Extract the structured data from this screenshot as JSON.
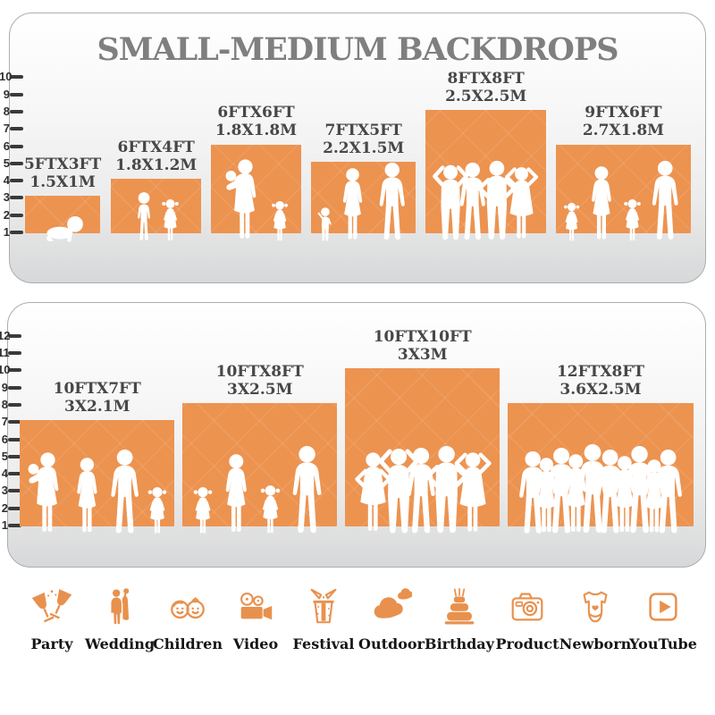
{
  "title": "SMALL-MEDIUM BACKDROPS",
  "colors": {
    "accent": "#E8914E",
    "block_fill": "#EC9350",
    "title_gray": "#7F7F7F",
    "label_dark": "#474747",
    "tick_dark": "#3A3A3A"
  },
  "chart_data": {
    "type": "bar",
    "title": "SMALL-MEDIUM BACKDROPS",
    "unit": "feet",
    "legend_position": "none",
    "grid": false,
    "panels": [
      {
        "ruler_min": 1,
        "ruler_max": 10,
        "items": [
          {
            "size_label": "5FTX3FT",
            "metric_label": "1.5X1M",
            "width_ft": 5,
            "height_ft": 3,
            "figures": [
              {
                "type": "baby",
                "h": 1.7
              }
            ]
          },
          {
            "size_label": "6FTX4FT",
            "metric_label": "1.8X1.2M",
            "width_ft": 6,
            "height_ft": 4,
            "figures": [
              {
                "type": "boy",
                "h": 3.0
              },
              {
                "type": "girl",
                "h": 2.6
              }
            ]
          },
          {
            "size_label": "6FTX6FT",
            "metric_label": "1.8X1.8M",
            "width_ft": 6,
            "height_ft": 6,
            "figures": [
              {
                "type": "woman-baby",
                "h": 4.9
              },
              {
                "type": "girl",
                "h": 2.5
              }
            ]
          },
          {
            "size_label": "7FTX5FT",
            "metric_label": "2.2X1.5M",
            "width_ft": 7,
            "height_ft": 5,
            "figures": [
              {
                "type": "toddler",
                "h": 2.1
              },
              {
                "type": "woman",
                "h": 4.4
              },
              {
                "type": "man",
                "h": 4.7
              }
            ]
          },
          {
            "size_label": "8FTX8FT",
            "metric_label": "2.5X2.5M",
            "width_ft": 8,
            "height_ft": 8,
            "figures": [
              {
                "type": "man-armsup",
                "h": 4.6
              },
              {
                "type": "man",
                "h": 4.7
              },
              {
                "type": "man-hips",
                "h": 4.8
              },
              {
                "type": "woman-armsup",
                "h": 4.5
              }
            ]
          },
          {
            "size_label": "9FTX6FT",
            "metric_label": "2.7X1.8M",
            "width_ft": 9,
            "height_ft": 6,
            "figures": [
              {
                "type": "girl",
                "h": 2.4
              },
              {
                "type": "woman",
                "h": 4.5
              },
              {
                "type": "girl",
                "h": 2.6
              },
              {
                "type": "man",
                "h": 4.8
              }
            ]
          }
        ]
      },
      {
        "ruler_min": 1,
        "ruler_max": 12,
        "items": [
          {
            "size_label": "10FTX7FT",
            "metric_label": "3X2.1M",
            "width_ft": 10,
            "height_ft": 7,
            "figures": [
              {
                "type": "woman-baby",
                "h": 4.9
              },
              {
                "type": "woman",
                "h": 4.6
              },
              {
                "type": "man",
                "h": 5.1
              },
              {
                "type": "girl",
                "h": 2.9
              }
            ]
          },
          {
            "size_label": "10FTX8FT",
            "metric_label": "3X2.5M",
            "width_ft": 10,
            "height_ft": 8,
            "figures": [
              {
                "type": "girl",
                "h": 2.9
              },
              {
                "type": "woman",
                "h": 4.8
              },
              {
                "type": "girl",
                "h": 3.0
              },
              {
                "type": "man",
                "h": 5.3
              }
            ]
          },
          {
            "size_label": "10FTX10FT",
            "metric_label": "3X3M",
            "width_ft": 10,
            "height_ft": 10,
            "figures": [
              {
                "type": "woman-hips",
                "h": 4.9
              },
              {
                "type": "man-armsup",
                "h": 5.2
              },
              {
                "type": "man",
                "h": 5.2
              },
              {
                "type": "man-hips",
                "h": 5.3
              },
              {
                "type": "woman-armsup",
                "h": 5.0
              }
            ]
          },
          {
            "size_label": "12FTX8FT",
            "metric_label": "3.6X2.5M",
            "width_ft": 12,
            "height_ft": 8,
            "figures": [
              {
                "type": "man",
                "h": 5.0
              },
              {
                "type": "woman",
                "h": 4.6
              },
              {
                "type": "man",
                "h": 5.2
              },
              {
                "type": "woman",
                "h": 4.8
              },
              {
                "type": "man",
                "h": 5.4
              },
              {
                "type": "man",
                "h": 5.1
              },
              {
                "type": "woman",
                "h": 4.7
              },
              {
                "type": "man",
                "h": 5.3
              },
              {
                "type": "woman",
                "h": 4.5
              },
              {
                "type": "man",
                "h": 5.1
              }
            ]
          }
        ]
      }
    ]
  },
  "categories": [
    {
      "label": "Party",
      "icon": "party"
    },
    {
      "label": "Wedding",
      "icon": "wedding"
    },
    {
      "label": "Children",
      "icon": "children"
    },
    {
      "label": "Video",
      "icon": "video"
    },
    {
      "label": "Festival",
      "icon": "festival"
    },
    {
      "label": "Outdoor",
      "icon": "outdoor"
    },
    {
      "label": "Birthday",
      "icon": "birthday"
    },
    {
      "label": "Product",
      "icon": "product"
    },
    {
      "label": "Newborn",
      "icon": "newborn"
    },
    {
      "label": "YouTube",
      "icon": "youtube"
    }
  ]
}
